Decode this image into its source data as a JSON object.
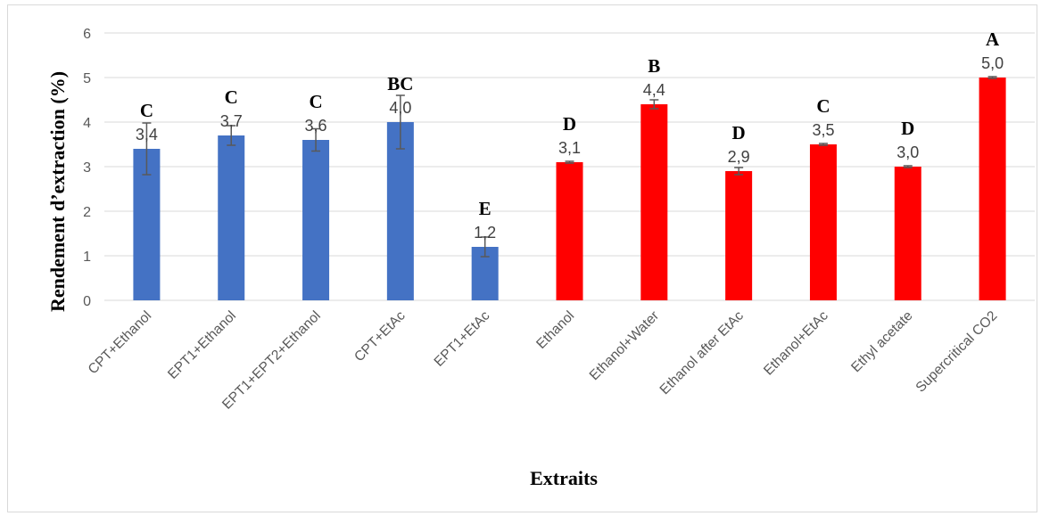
{
  "chart_data": {
    "type": "bar",
    "title": "",
    "xlabel": "Extraits",
    "ylabel": "Rendement d’extraction (%)",
    "ylim": [
      0,
      6
    ],
    "yticks": [
      "0",
      "1",
      "2",
      "3",
      "4",
      "5",
      "6"
    ],
    "grid": true,
    "categories": [
      "CPT+Ethanol",
      "EPT1+Ethanol",
      "EPT1+EPT2+Ethanol",
      "CPT+EtAc",
      "EPT1+EtAc",
      "Ethanol",
      "Ethanol+Water",
      "Ethanol after EtAc",
      "Ethanol+EtAc",
      "Ethyl acetate",
      "Supercritical CO2"
    ],
    "values": [
      3.4,
      3.7,
      3.6,
      4.0,
      1.2,
      3.1,
      4.4,
      2.9,
      3.5,
      3.0,
      5.0
    ],
    "value_labels": [
      "3,4",
      "3,7",
      "3,6",
      "4,0",
      "1,2",
      "3,1",
      "4,4",
      "2,9",
      "3,5",
      "3,0",
      "5,0"
    ],
    "errors": [
      0.58,
      0.22,
      0.25,
      0.6,
      0.22,
      0.02,
      0.1,
      0.08,
      0.02,
      0.02,
      0.02
    ],
    "significance_letters": [
      "C",
      "C",
      "C",
      "BC",
      "E",
      "D",
      "B",
      "D",
      "C",
      "D",
      "A"
    ],
    "bar_colors": [
      "#4472c4",
      "#4472c4",
      "#4472c4",
      "#4472c4",
      "#4472c4",
      "#ff0000",
      "#ff0000",
      "#ff0000",
      "#ff0000",
      "#ff0000",
      "#ff0000"
    ],
    "colors": {
      "grid": "#d9d9d9",
      "error_bar": "#595959"
    }
  }
}
